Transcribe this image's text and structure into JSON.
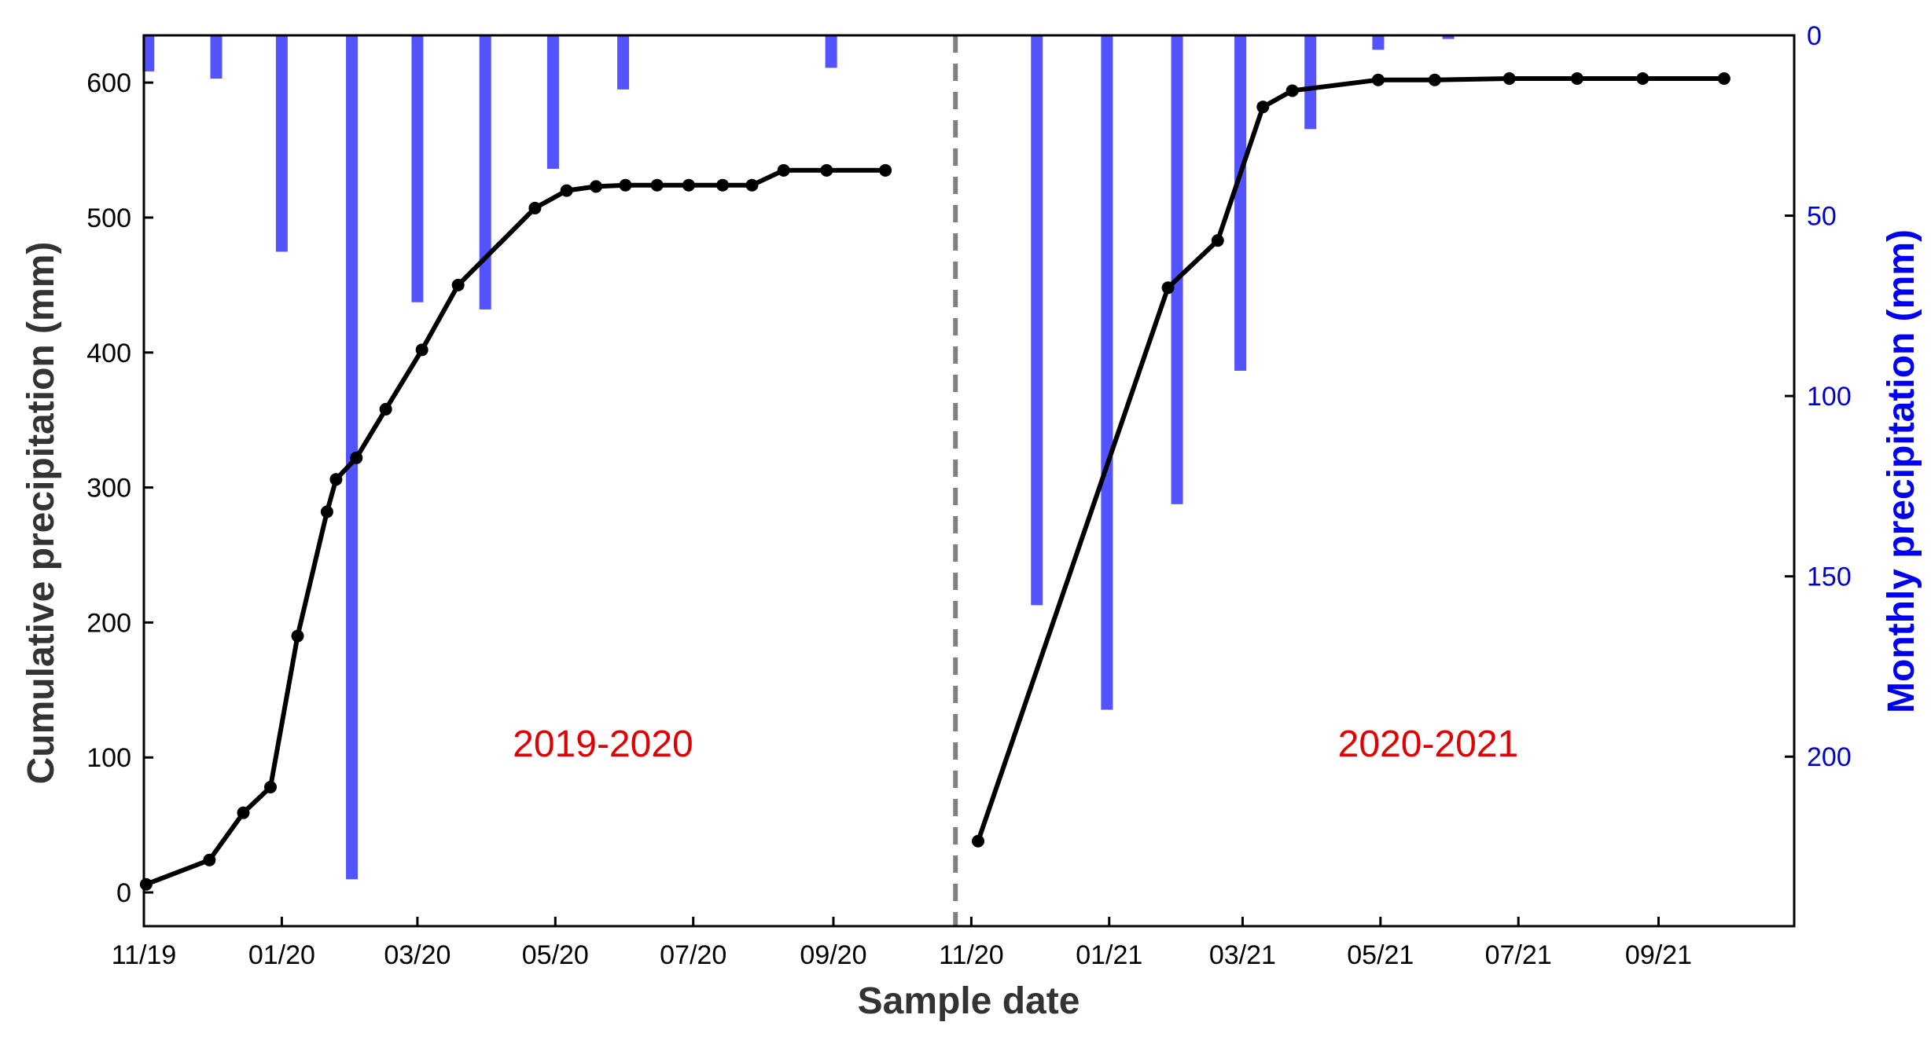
{
  "chart_data": {
    "type": "line",
    "xlabel": "Sample date",
    "ylabel_left": "Cumulative precipitation (mm)",
    "ylabel_right": "Monthly precipitation (mm)",
    "colors": {
      "cumulative": "#000000",
      "monthly": "#4a4aff",
      "divider": "#808080",
      "annotation": "#e00000",
      "right_axis": "#0000cc"
    },
    "x_axis": {
      "type": "date",
      "range": [
        "2019-11-01",
        "2021-10-31"
      ],
      "ticks": [
        {
          "date": "2019-11-01",
          "label": "11/19"
        },
        {
          "date": "2020-01-01",
          "label": "01/20"
        },
        {
          "date": "2020-03-01",
          "label": "03/20"
        },
        {
          "date": "2020-05-01",
          "label": "05/20"
        },
        {
          "date": "2020-07-01",
          "label": "07/20"
        },
        {
          "date": "2020-09-01",
          "label": "09/20"
        },
        {
          "date": "2020-11-01",
          "label": "11/20"
        },
        {
          "date": "2021-01-01",
          "label": "01/21"
        },
        {
          "date": "2021-03-01",
          "label": "03/21"
        },
        {
          "date": "2021-05-01",
          "label": "05/21"
        },
        {
          "date": "2021-07-01",
          "label": "07/21"
        },
        {
          "date": "2021-09-01",
          "label": "09/21"
        }
      ]
    },
    "y_left": {
      "range": [
        -25,
        635
      ],
      "ticks": [
        0,
        100,
        200,
        300,
        400,
        500,
        600
      ]
    },
    "y_right": {
      "range": [
        0,
        247
      ],
      "inverted": true,
      "ticks": [
        0,
        50,
        100,
        150,
        200
      ]
    },
    "grid": false,
    "divider_date": "2020-10-25",
    "cumulative_series": [
      {
        "name": "2019-2020",
        "points": [
          [
            "2019-11-02",
            6
          ],
          [
            "2019-11-30",
            24
          ],
          [
            "2019-12-15",
            59
          ],
          [
            "2019-12-27",
            78
          ],
          [
            "2020-01-08",
            190
          ],
          [
            "2020-01-21",
            282
          ],
          [
            "2020-01-25",
            306
          ],
          [
            "2020-02-03",
            322
          ],
          [
            "2020-02-16",
            358
          ],
          [
            "2020-03-03",
            402
          ],
          [
            "2020-03-19",
            450
          ],
          [
            "2020-04-22",
            507
          ],
          [
            "2020-05-06",
            520
          ],
          [
            "2020-05-19",
            523
          ],
          [
            "2020-06-01",
            524
          ],
          [
            "2020-06-15",
            524
          ],
          [
            "2020-06-29",
            524
          ],
          [
            "2020-07-14",
            524
          ],
          [
            "2020-07-27",
            524
          ],
          [
            "2020-08-10",
            535
          ],
          [
            "2020-08-29",
            535
          ],
          [
            "2020-09-24",
            535
          ]
        ]
      },
      {
        "name": "2020-2021",
        "points": [
          [
            "2020-11-04",
            38
          ],
          [
            "2021-01-27",
            448
          ],
          [
            "2021-02-18",
            483
          ],
          [
            "2021-03-10",
            582
          ],
          [
            "2021-03-23",
            594
          ],
          [
            "2021-04-30",
            602
          ],
          [
            "2021-05-25",
            602
          ],
          [
            "2021-06-27",
            603
          ],
          [
            "2021-07-27",
            603
          ],
          [
            "2021-08-25",
            603
          ],
          [
            "2021-09-30",
            603
          ]
        ]
      }
    ],
    "monthly_bars": [
      {
        "date": "2019-11-03",
        "value": 10
      },
      {
        "date": "2019-12-03",
        "value": 12
      },
      {
        "date": "2020-01-01",
        "value": 60
      },
      {
        "date": "2020-02-01",
        "value": 234
      },
      {
        "date": "2020-03-01",
        "value": 74
      },
      {
        "date": "2020-03-31",
        "value": 76
      },
      {
        "date": "2020-04-30",
        "value": 37
      },
      {
        "date": "2020-05-31",
        "value": 15
      },
      {
        "date": "2020-08-31",
        "value": 9
      },
      {
        "date": "2020-11-30",
        "value": 158
      },
      {
        "date": "2020-12-31",
        "value": 187
      },
      {
        "date": "2021-01-31",
        "value": 130
      },
      {
        "date": "2021-02-28",
        "value": 93
      },
      {
        "date": "2021-03-31",
        "value": 26
      },
      {
        "date": "2021-04-30",
        "value": 4
      },
      {
        "date": "2021-05-31",
        "value": 1
      }
    ],
    "annotations": [
      {
        "text": "2019-2020",
        "date": "2020-07-01",
        "y": 110
      },
      {
        "text": "2020-2021",
        "date": "2021-07-01",
        "y": 110
      }
    ]
  }
}
